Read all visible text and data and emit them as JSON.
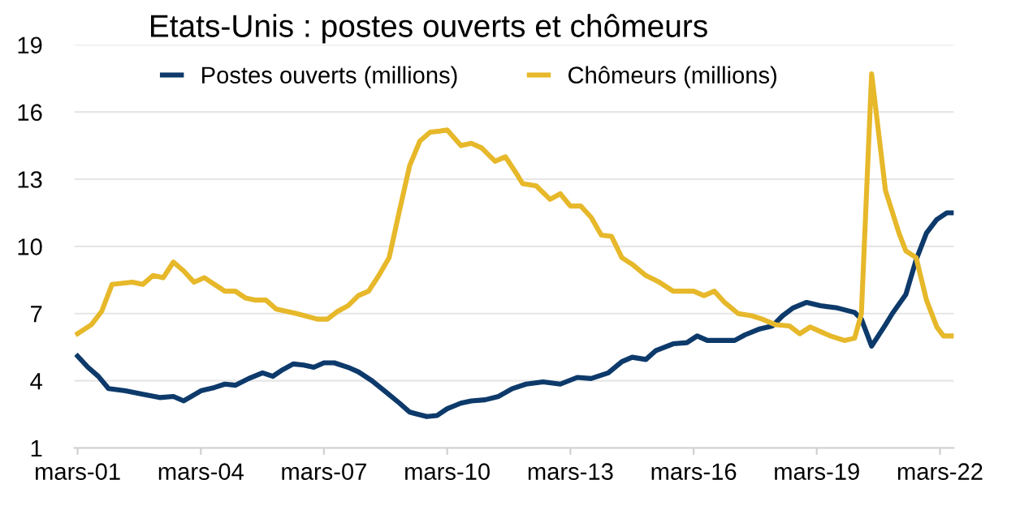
{
  "chart_data": {
    "type": "line",
    "title": "Etats-Unis : postes ouverts et chômeurs",
    "series": [
      {
        "name": "Postes ouverts (millions)",
        "color": "#0d3a6b",
        "x": [
          "2001-03",
          "2001-06",
          "2001-09",
          "2001-12",
          "2002-05",
          "2002-10",
          "2003-03",
          "2003-07",
          "2003-10",
          "2004-03",
          "2004-07",
          "2004-10",
          "2005-01",
          "2005-05",
          "2005-09",
          "2005-12",
          "2006-03",
          "2006-06",
          "2006-09",
          "2006-12",
          "2007-03",
          "2007-06",
          "2007-10",
          "2008-01",
          "2008-05",
          "2008-09",
          "2009-01",
          "2009-04",
          "2009-09",
          "2009-12",
          "2010-03",
          "2010-07",
          "2010-10",
          "2011-02",
          "2011-06",
          "2011-10",
          "2012-02",
          "2012-07",
          "2012-12",
          "2013-05",
          "2013-09",
          "2014-02",
          "2014-06",
          "2014-09",
          "2015-01",
          "2015-04",
          "2015-09",
          "2016-01",
          "2016-04",
          "2016-07",
          "2016-11",
          "2017-03",
          "2017-06",
          "2017-10",
          "2018-02",
          "2018-05",
          "2018-08",
          "2018-12",
          "2019-04",
          "2019-09",
          "2020-02",
          "2020-04",
          "2020-07",
          "2020-11",
          "2021-01",
          "2021-05",
          "2021-08",
          "2021-11",
          "2022-02",
          "2022-05",
          "2022-07"
        ],
        "values": [
          5.1,
          4.6,
          4.2,
          3.65,
          3.55,
          3.4,
          3.25,
          3.3,
          3.1,
          3.55,
          3.7,
          3.85,
          3.8,
          4.1,
          4.35,
          4.2,
          4.5,
          4.75,
          4.7,
          4.6,
          4.8,
          4.8,
          4.6,
          4.4,
          4.0,
          3.5,
          3.0,
          2.6,
          2.4,
          2.45,
          2.75,
          3.0,
          3.1,
          3.15,
          3.3,
          3.65,
          3.85,
          3.95,
          3.85,
          4.15,
          4.1,
          4.35,
          4.85,
          5.05,
          4.95,
          5.35,
          5.65,
          5.7,
          6.0,
          5.8,
          5.8,
          5.8,
          6.05,
          6.3,
          6.45,
          6.9,
          7.25,
          7.5,
          7.35,
          7.25,
          7.05,
          6.75,
          5.55,
          6.5,
          7.0,
          7.85,
          9.4,
          10.6,
          11.2,
          11.5,
          11.5
        ]
      },
      {
        "name": "Chômeurs (millions)",
        "color": "#e6b82a",
        "x": [
          "2001-03",
          "2001-07",
          "2001-10",
          "2002-01",
          "2002-07",
          "2002-10",
          "2003-01",
          "2003-04",
          "2003-07",
          "2003-10",
          "2004-01",
          "2004-04",
          "2004-07",
          "2004-10",
          "2005-01",
          "2005-04",
          "2005-07",
          "2005-10",
          "2006-01",
          "2006-07",
          "2007-01",
          "2007-04",
          "2007-07",
          "2007-10",
          "2008-01",
          "2008-04",
          "2008-07",
          "2008-10",
          "2009-01",
          "2009-04",
          "2009-07",
          "2009-10",
          "2010-01",
          "2010-03",
          "2010-07",
          "2010-10",
          "2011-01",
          "2011-05",
          "2011-08",
          "2011-11",
          "2012-01",
          "2012-05",
          "2012-09",
          "2012-12",
          "2013-03",
          "2013-06",
          "2013-09",
          "2013-12",
          "2014-03",
          "2014-06",
          "2014-09",
          "2015-01",
          "2015-05",
          "2015-09",
          "2016-03",
          "2016-06",
          "2016-09",
          "2016-12",
          "2017-04",
          "2017-08",
          "2017-11",
          "2018-03",
          "2018-07",
          "2018-10",
          "2019-01",
          "2019-04",
          "2019-07",
          "2019-11",
          "2020-02",
          "2020-04",
          "2020-07",
          "2020-11",
          "2021-03",
          "2021-05",
          "2021-08",
          "2021-11",
          "2022-02",
          "2022-04",
          "2022-07"
        ],
        "values": [
          6.1,
          6.5,
          7.1,
          8.3,
          8.4,
          8.3,
          8.7,
          8.6,
          9.3,
          8.9,
          8.4,
          8.6,
          8.3,
          8.0,
          8.0,
          7.7,
          7.6,
          7.6,
          7.2,
          7.0,
          6.75,
          6.75,
          7.1,
          7.35,
          7.8,
          8.0,
          8.7,
          9.5,
          11.6,
          13.6,
          14.7,
          15.1,
          15.15,
          15.2,
          14.5,
          14.6,
          14.4,
          13.8,
          14.0,
          13.3,
          12.8,
          12.7,
          12.1,
          12.35,
          11.8,
          11.8,
          11.3,
          10.5,
          10.45,
          9.5,
          9.2,
          8.7,
          8.4,
          8.0,
          8.0,
          7.8,
          8.0,
          7.5,
          7.0,
          6.9,
          6.75,
          6.5,
          6.45,
          6.1,
          6.4,
          6.2,
          6.0,
          5.8,
          5.9,
          7.0,
          17.7,
          12.5,
          10.6,
          9.8,
          9.5,
          7.6,
          6.4,
          6.0,
          6.0
        ]
      }
    ],
    "xlim": [
      "2001-02",
      "2022-07"
    ],
    "xticks": [
      {
        "value": "2001-03",
        "label": "mars-01"
      },
      {
        "value": "2004-03",
        "label": "mars-04"
      },
      {
        "value": "2007-03",
        "label": "mars-07"
      },
      {
        "value": "2010-03",
        "label": "mars-10"
      },
      {
        "value": "2013-03",
        "label": "mars-13"
      },
      {
        "value": "2016-03",
        "label": "mars-16"
      },
      {
        "value": "2019-03",
        "label": "mars-19"
      },
      {
        "value": "2022-03",
        "label": "mars-22"
      }
    ],
    "ylim": [
      1,
      19
    ],
    "yticks": [
      1,
      4,
      7,
      10,
      13,
      16,
      19
    ],
    "grid": "y",
    "legend": "top",
    "marker": "none",
    "line_style": "solid"
  }
}
